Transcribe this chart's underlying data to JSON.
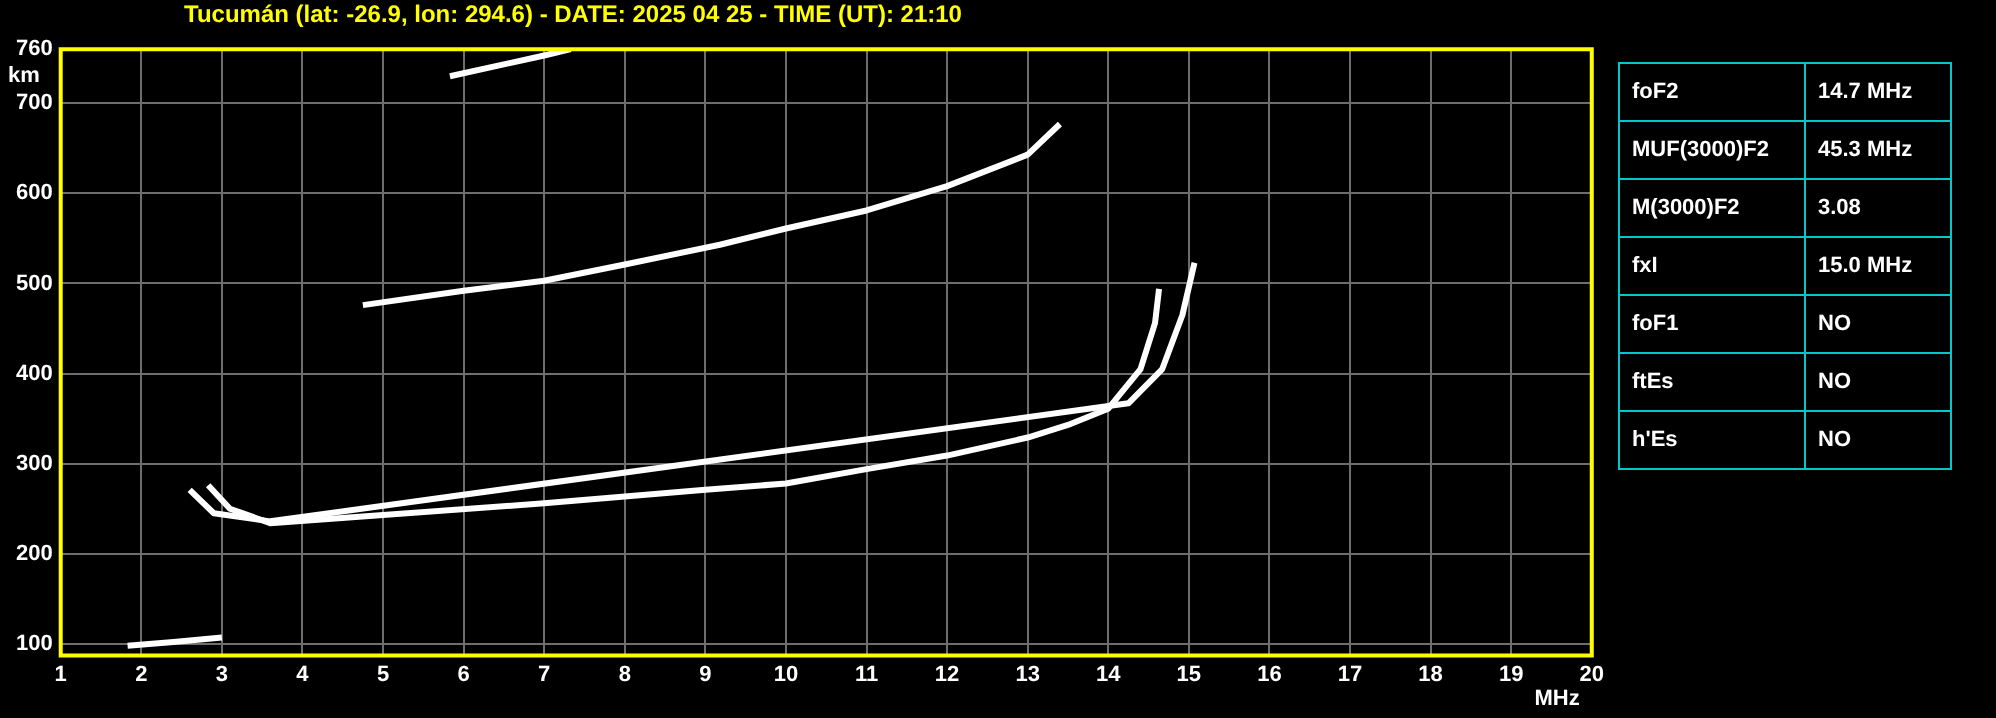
{
  "chart_data": {
    "type": "line",
    "title": "Tucumán (lat: -26.9, lon: 294.6) - DATE: 2025 04 25 - TIME (UT): 21:10",
    "xlabel": "MHz",
    "ylabel": "km",
    "xlim": [
      1,
      20
    ],
    "xticks": [
      1,
      2,
      3,
      4,
      5,
      6,
      7,
      8,
      9,
      10,
      11,
      12,
      13,
      14,
      15,
      16,
      17,
      18,
      19,
      20
    ],
    "ylim": [
      87,
      760
    ],
    "yticks": [
      100,
      200,
      300,
      400,
      500,
      600,
      700,
      760
    ],
    "grid": true,
    "legend": false,
    "marker": "none",
    "line_style": "solid",
    "series": [
      {
        "color": "#ffffff",
        "x": [
          2.83,
          3.1,
          3.6,
          5,
          7,
          9,
          10,
          11,
          12,
          13,
          13.5,
          14,
          14.4,
          14.58,
          14.63
        ],
        "values": [
          276,
          250,
          234,
          243,
          256,
          271,
          278,
          294,
          309,
          329,
          343,
          361,
          405,
          456,
          494
        ]
      },
      {
        "color": "#ffffff",
        "x": [
          2.6,
          2.9,
          3.6,
          14.25,
          14.67,
          14.92,
          15.07
        ],
        "values": [
          271,
          245,
          236,
          367,
          405,
          465,
          523
        ]
      },
      {
        "color": "#ffffff",
        "x": [
          4.75,
          6,
          7,
          8,
          9.18,
          10,
          11,
          12,
          13,
          13.4
        ],
        "values": [
          476,
          492,
          503,
          521,
          543,
          561,
          581,
          608,
          643,
          677
        ]
      },
      {
        "color": "#ffffff",
        "x": [
          5.83,
          7,
          7.33
        ],
        "values": [
          730,
          753,
          760
        ]
      },
      {
        "color": "#ffffff",
        "x": [
          1.83,
          2.4,
          3.0
        ],
        "values": [
          98,
          102,
          107
        ]
      }
    ],
    "annotations": [
      "foF2",
      "14.7 MHz",
      "MUF(3000)F2",
      "45.3 MHz",
      "M(3000)F2",
      "3.08",
      "fxI",
      "15.0 MHz",
      "foF1",
      "NO",
      "ftEs",
      "NO",
      "h'Es",
      "NO"
    ]
  }
}
